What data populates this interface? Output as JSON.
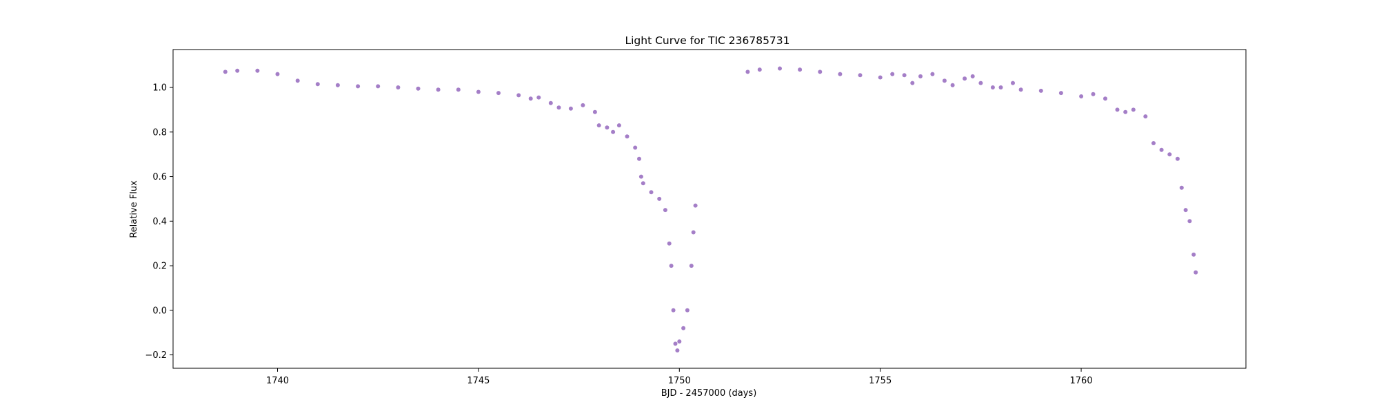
{
  "chart_data": {
    "type": "scatter",
    "title": "Light Curve for TIC 236785731",
    "xlabel": "BJD - 2457000 (days)",
    "ylabel": "Relative Flux",
    "xlim": [
      1737.4,
      1764.1
    ],
    "ylim": [
      -0.26,
      1.17
    ],
    "xticks": [
      1740,
      1745,
      1750,
      1755,
      1760
    ],
    "yticks": [
      -0.2,
      0.0,
      0.2,
      0.4,
      0.6,
      0.8,
      1.0
    ],
    "grid": false,
    "marker_color": "#9467bd",
    "series": [
      {
        "x": [
          1738.7,
          1739.0,
          1739.5,
          1740.0,
          1740.5,
          1741.0,
          1741.5,
          1742.0,
          1742.5,
          1743.0,
          1743.5,
          1744.0,
          1744.5,
          1745.0,
          1745.5,
          1746.0,
          1746.3,
          1746.5,
          1746.8,
          1747.0,
          1747.3,
          1747.6,
          1747.9,
          1748.0,
          1748.2,
          1748.35,
          1748.5,
          1748.7,
          1748.9,
          1749.0,
          1749.05,
          1749.1,
          1749.3,
          1749.5,
          1749.65,
          1749.75,
          1749.8,
          1749.85,
          1749.9,
          1749.95,
          1750.0,
          1750.1,
          1750.2,
          1750.3,
          1750.35,
          1750.4
        ],
        "y": [
          1.07,
          1.075,
          1.075,
          1.06,
          1.03,
          1.015,
          1.01,
          1.005,
          1.005,
          1.0,
          0.995,
          0.99,
          0.99,
          0.98,
          0.975,
          0.965,
          0.95,
          0.955,
          0.93,
          0.91,
          0.905,
          0.92,
          0.89,
          0.83,
          0.82,
          0.8,
          0.83,
          0.78,
          0.73,
          0.68,
          0.6,
          0.57,
          0.53,
          0.5,
          0.45,
          0.3,
          0.2,
          0.0,
          -0.15,
          -0.18,
          -0.14,
          -0.08,
          0.0,
          0.2,
          0.35,
          0.47
        ]
      },
      {
        "x": [
          1751.7,
          1752.0,
          1752.5,
          1753.0,
          1753.5,
          1754.0,
          1754.5,
          1755.0,
          1755.3,
          1755.6,
          1755.8,
          1756.0,
          1756.3,
          1756.6,
          1756.8,
          1757.1,
          1757.3,
          1757.5,
          1757.8,
          1758.0,
          1758.3,
          1758.5,
          1759.0,
          1759.5,
          1760.0,
          1760.3,
          1760.6,
          1760.9,
          1761.1,
          1761.3,
          1761.6,
          1761.8,
          1762.0,
          1762.2,
          1762.4,
          1762.5,
          1762.6,
          1762.7,
          1762.8,
          1762.85
        ],
        "y": [
          1.07,
          1.08,
          1.085,
          1.08,
          1.07,
          1.06,
          1.055,
          1.045,
          1.06,
          1.055,
          1.02,
          1.05,
          1.06,
          1.03,
          1.01,
          1.04,
          1.05,
          1.02,
          1.0,
          1.0,
          1.02,
          0.99,
          0.985,
          0.975,
          0.96,
          0.97,
          0.95,
          0.9,
          0.89,
          0.9,
          0.87,
          0.75,
          0.72,
          0.7,
          0.68,
          0.55,
          0.45,
          0.4,
          0.25,
          0.17
        ]
      }
    ]
  }
}
